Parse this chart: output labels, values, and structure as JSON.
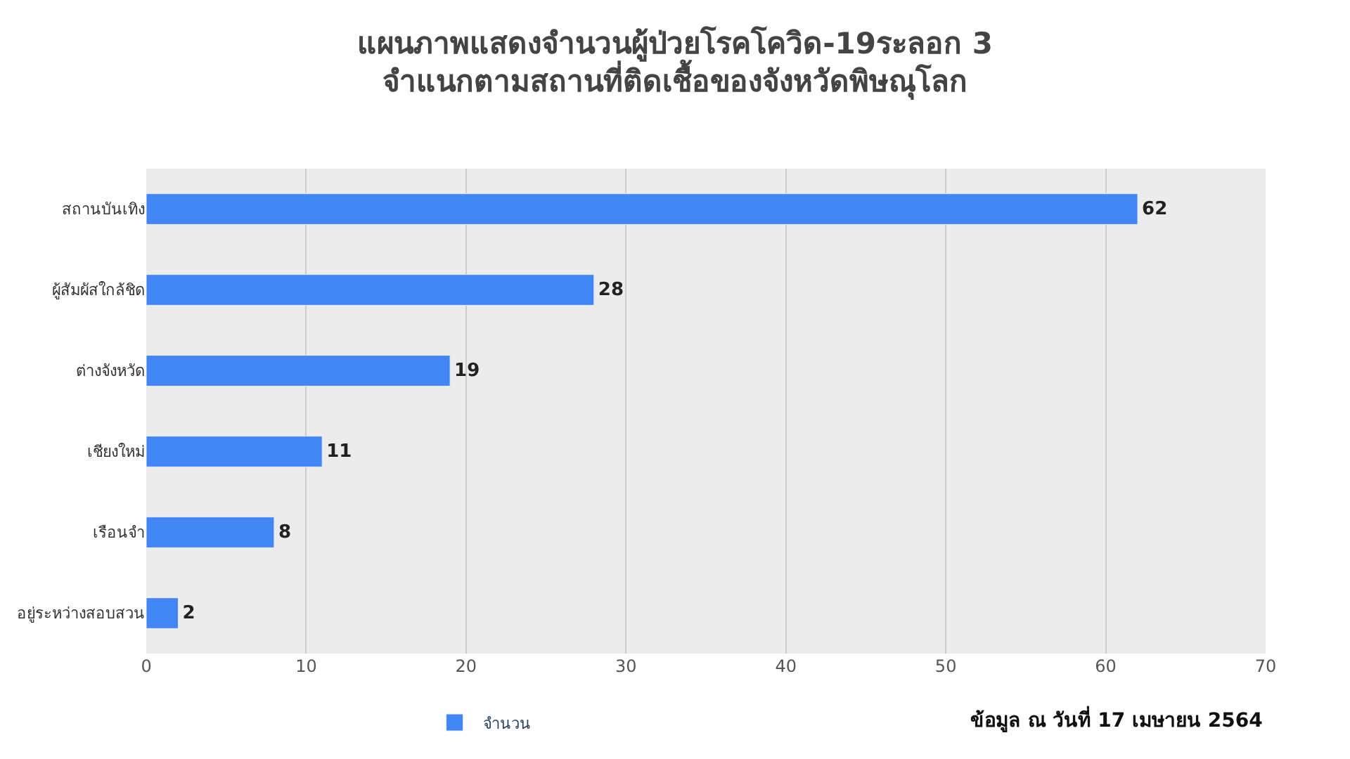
{
  "chart_data": {
    "type": "bar",
    "orientation": "horizontal",
    "title": "แผนภาพแสดงจำนวนผู้ป่วยโรคโควิด-19ระลอก 3\nจำแนกตามสถานที่ติดเชื้อของจังหวัดพิษณุโลก",
    "categories": [
      "สถานบันเทิง",
      "ผู้สัมผัสใกล้ชิด",
      "ต่างจังหวัด",
      "เชียงใหม่",
      "เรือนจำ",
      "อยู่ระหว่างสอบสวน"
    ],
    "series": [
      {
        "name": "จำนวน",
        "color": "#4285f4",
        "values": [
          62,
          28,
          19,
          11,
          8,
          2
        ]
      }
    ],
    "xlim": [
      0,
      70
    ],
    "xticks": [
      0,
      10,
      20,
      30,
      40,
      50,
      60,
      70
    ],
    "grid": "x",
    "legend": "bottom",
    "data_labels": true,
    "annotations": [
      "ข้อมูล ณ วันที่ 17 เมษายน 2564"
    ]
  }
}
